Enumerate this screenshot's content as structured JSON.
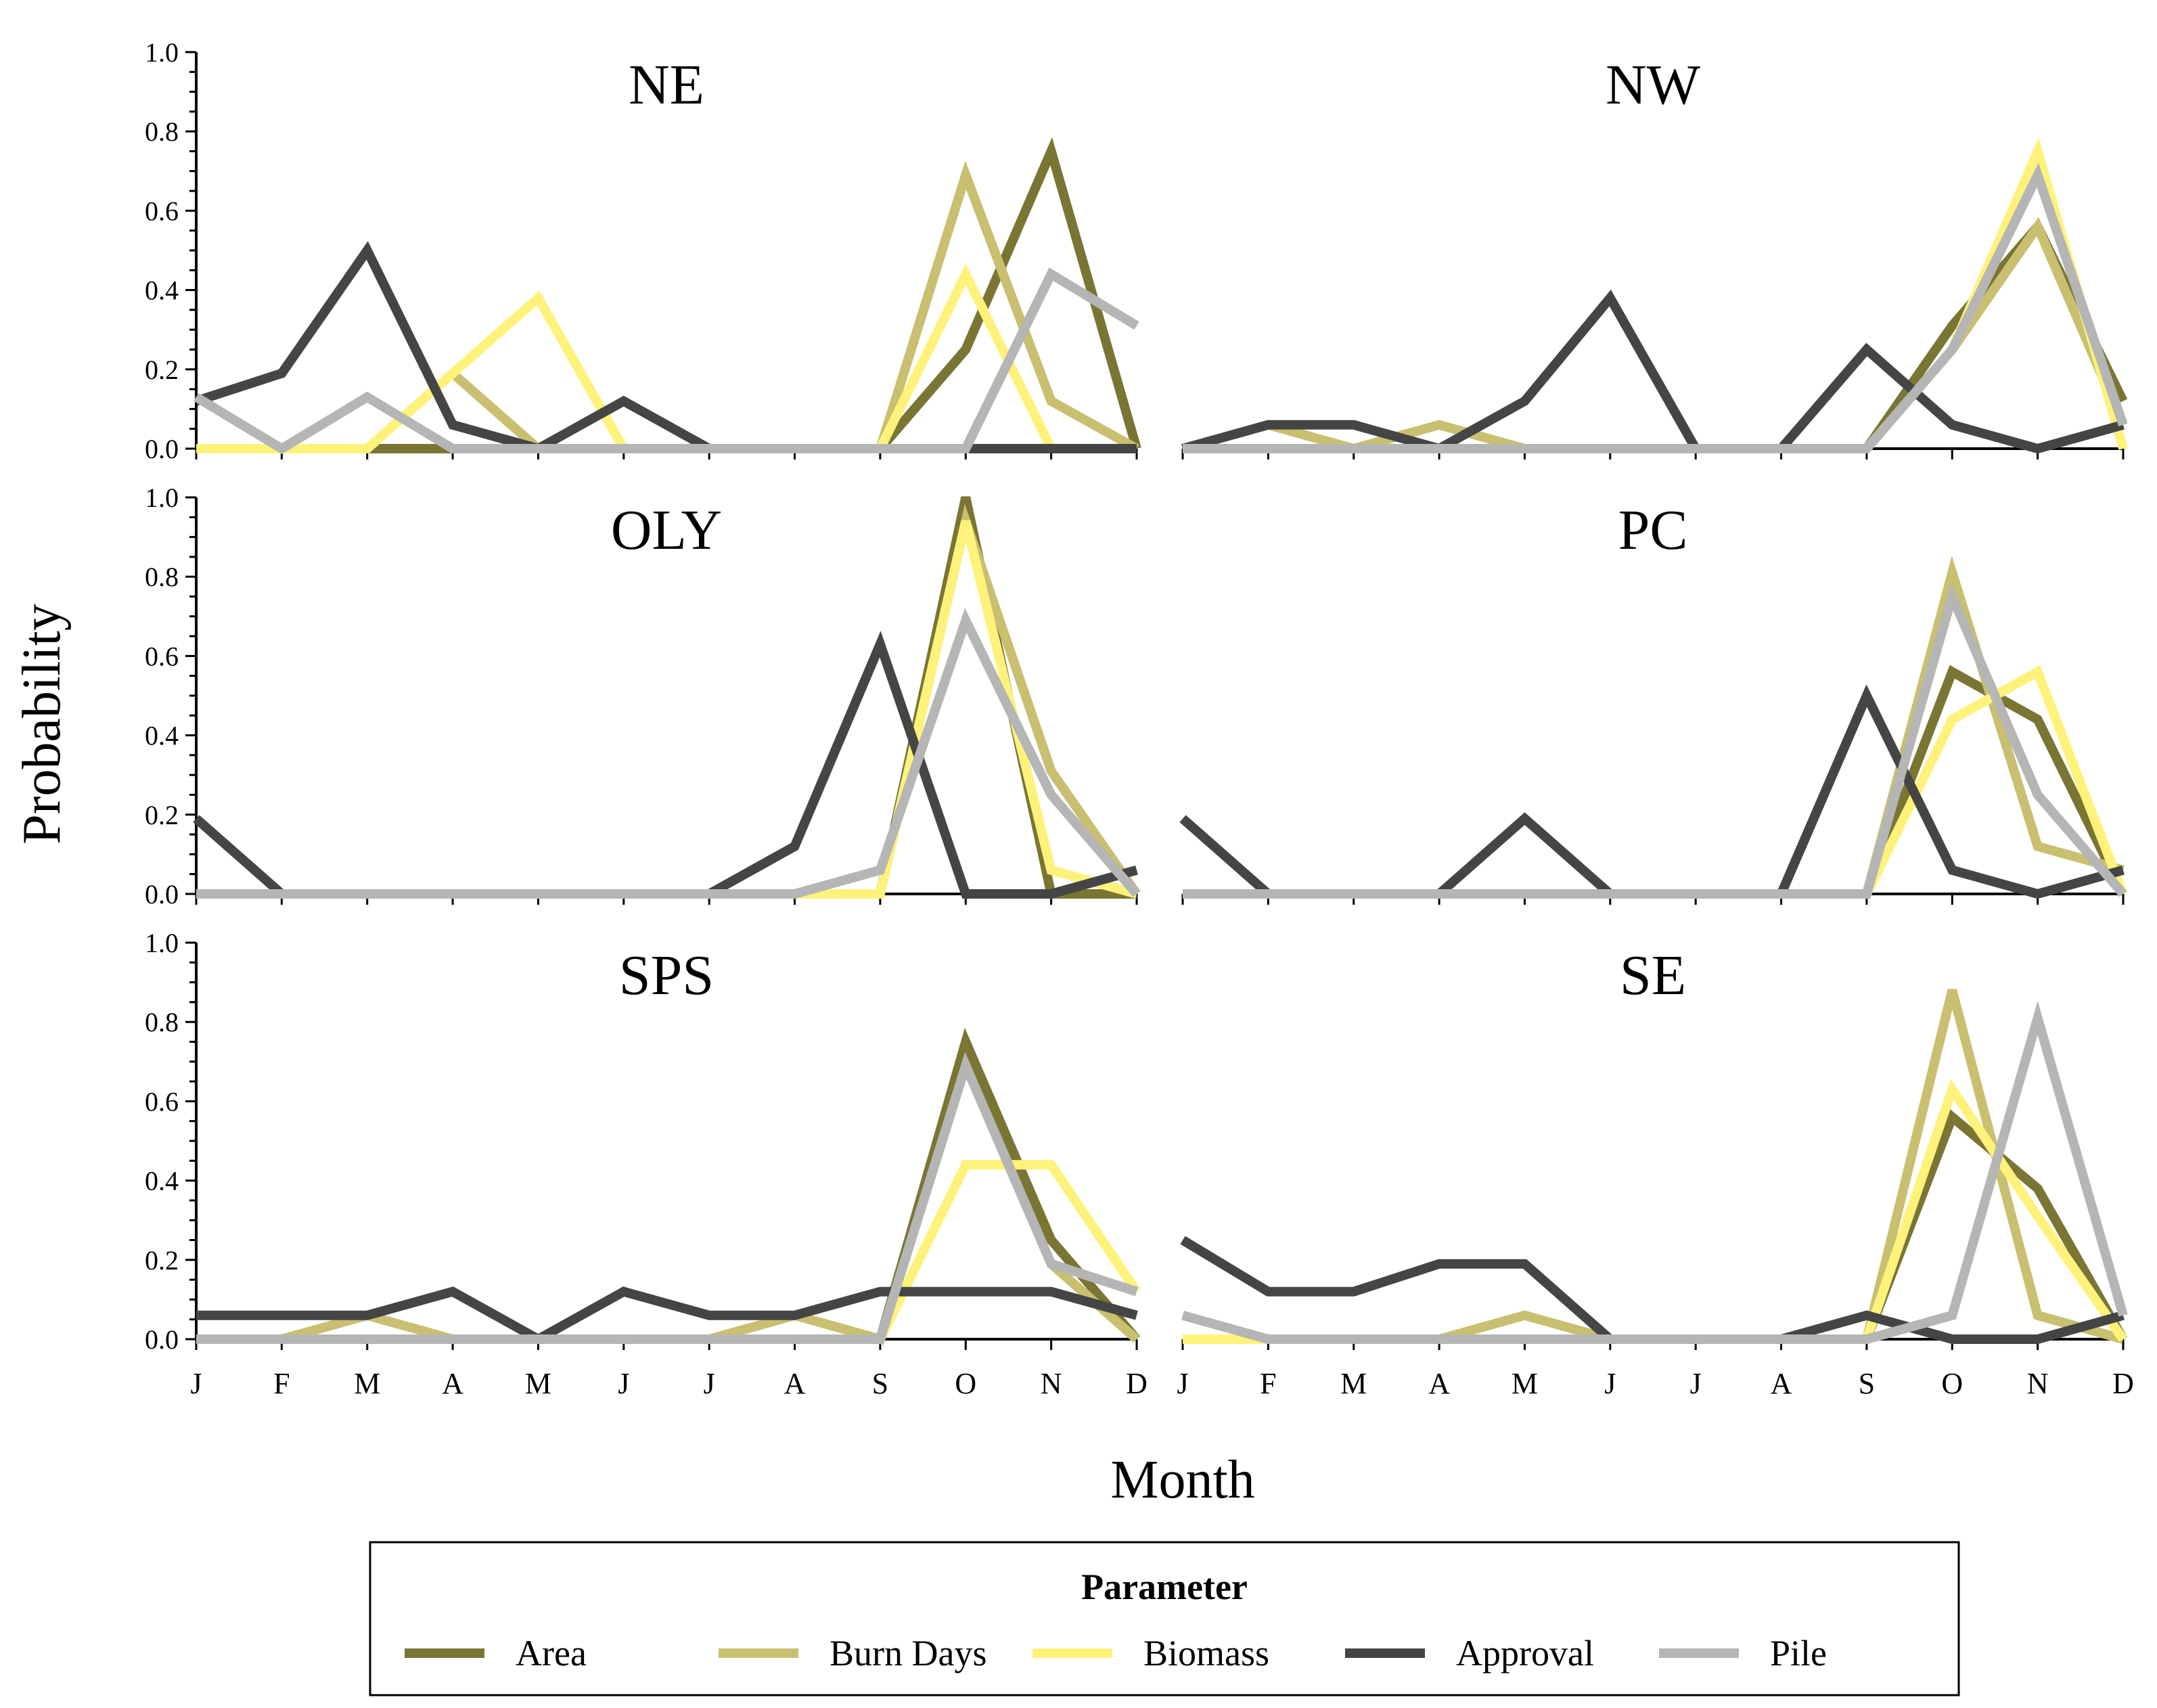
{
  "figure": {
    "ylabel": "Probability",
    "xlabel": "Month",
    "legend_title": "Parameter"
  },
  "chart_data": {
    "type": "line",
    "layout": "facet-grid 3 rows x 2 columns",
    "months": [
      "J",
      "F",
      "M",
      "A",
      "M",
      "J",
      "J",
      "A",
      "S",
      "O",
      "N",
      "D"
    ],
    "yticks": [
      "0.0",
      "0.2",
      "0.4",
      "0.6",
      "0.8",
      "1.0"
    ],
    "ylim": [
      0,
      1
    ],
    "grid": false,
    "legend_position": "bottom",
    "series_styles": [
      {
        "name": "Area",
        "color": "#7a7533"
      },
      {
        "name": "Burn Days",
        "color": "#c9bf70"
      },
      {
        "name": "Biomass",
        "color": "#fff27a"
      },
      {
        "name": "Approval",
        "color": "#454545"
      },
      {
        "name": "Pile",
        "color": "#b5b5b5"
      }
    ],
    "panels": [
      {
        "title": "NE",
        "series": [
          {
            "name": "Area",
            "values": [
              0,
              0,
              0,
              0,
              0,
              0,
              0,
              0,
              0,
              0.25,
              0.75,
              0
            ]
          },
          {
            "name": "Burn Days",
            "values": [
              0,
              0,
              0,
              0.19,
              0,
              0,
              0,
              0,
              0,
              0.69,
              0.12,
              0
            ]
          },
          {
            "name": "Biomass",
            "values": [
              0,
              0,
              0,
              0.19,
              0.38,
              0,
              0,
              0,
              0,
              0.44,
              0,
              0
            ]
          },
          {
            "name": "Approval",
            "values": [
              0.12,
              0.19,
              0.5,
              0.06,
              0,
              0.12,
              0,
              0,
              0,
              0,
              0,
              0
            ]
          },
          {
            "name": "Pile",
            "values": [
              0.13,
              0,
              0.13,
              0,
              0,
              0,
              0,
              0,
              0,
              0,
              0.44,
              0.31
            ]
          }
        ]
      },
      {
        "title": "NW",
        "series": [
          {
            "name": "Area",
            "values": [
              0,
              0,
              0,
              0,
              0,
              0,
              0,
              0,
              0,
              0.31,
              0.56,
              0.12
            ]
          },
          {
            "name": "Burn Days",
            "values": [
              0,
              0.06,
              0,
              0.06,
              0,
              0,
              0,
              0,
              0,
              0.25,
              0.56,
              0.06
            ]
          },
          {
            "name": "Biomass",
            "values": [
              0,
              0,
              0,
              0,
              0,
              0,
              0,
              0,
              0,
              0.25,
              0.75,
              0
            ]
          },
          {
            "name": "Approval",
            "values": [
              0,
              0.06,
              0.06,
              0,
              0.12,
              0.38,
              0,
              0,
              0.25,
              0.06,
              0,
              0.06
            ]
          },
          {
            "name": "Pile",
            "values": [
              0,
              0,
              0,
              0,
              0,
              0,
              0,
              0,
              0,
              0.25,
              0.69,
              0.06
            ]
          }
        ]
      },
      {
        "title": "OLY",
        "series": [
          {
            "name": "Area",
            "values": [
              0,
              0,
              0,
              0,
              0,
              0,
              0,
              0,
              0,
              1.0,
              0,
              0
            ]
          },
          {
            "name": "Burn Days",
            "values": [
              0,
              0,
              0,
              0,
              0,
              0,
              0,
              0,
              0,
              0.94,
              0.31,
              0
            ]
          },
          {
            "name": "Biomass",
            "values": [
              0,
              0,
              0,
              0,
              0,
              0,
              0,
              0,
              0,
              0.94,
              0.06,
              0
            ]
          },
          {
            "name": "Approval",
            "values": [
              0.19,
              0,
              0,
              0,
              0,
              0,
              0,
              0.12,
              0.63,
              0,
              0,
              0.06
            ]
          },
          {
            "name": "Pile",
            "values": [
              0,
              0,
              0,
              0,
              0,
              0,
              0,
              0,
              0.06,
              0.69,
              0.25,
              0
            ]
          }
        ]
      },
      {
        "title": "PC",
        "series": [
          {
            "name": "Area",
            "values": [
              0,
              0,
              0,
              0,
              0,
              0,
              0,
              0,
              0,
              0.56,
              0.44,
              0
            ]
          },
          {
            "name": "Burn Days",
            "values": [
              0,
              0,
              0,
              0,
              0,
              0,
              0,
              0,
              0,
              0.81,
              0.12,
              0.06
            ]
          },
          {
            "name": "Biomass",
            "values": [
              0,
              0,
              0,
              0,
              0,
              0,
              0,
              0,
              0,
              0.44,
              0.56,
              0
            ]
          },
          {
            "name": "Approval",
            "values": [
              0.19,
              0,
              0,
              0,
              0.19,
              0,
              0,
              0,
              0.5,
              0.06,
              0,
              0.06
            ]
          },
          {
            "name": "Pile",
            "values": [
              0,
              0,
              0,
              0,
              0,
              0,
              0,
              0,
              0,
              0.75,
              0.25,
              0
            ]
          }
        ]
      },
      {
        "title": "SPS",
        "series": [
          {
            "name": "Area",
            "values": [
              0,
              0,
              0,
              0,
              0,
              0,
              0,
              0,
              0,
              0.75,
              0.25,
              0
            ]
          },
          {
            "name": "Burn Days",
            "values": [
              0,
              0,
              0.06,
              0,
              0,
              0,
              0,
              0.06,
              0,
              0.69,
              0.19,
              0
            ]
          },
          {
            "name": "Biomass",
            "values": [
              0,
              0,
              0,
              0,
              0,
              0,
              0,
              0,
              0,
              0.44,
              0.44,
              0.12
            ]
          },
          {
            "name": "Approval",
            "values": [
              0.06,
              0.06,
              0.06,
              0.12,
              0,
              0.12,
              0.06,
              0.06,
              0.12,
              0.12,
              0.12,
              0.06
            ]
          },
          {
            "name": "Pile",
            "values": [
              0,
              0,
              0,
              0,
              0,
              0,
              0,
              0,
              0,
              0.69,
              0.19,
              0.12
            ]
          }
        ]
      },
      {
        "title": "SE",
        "series": [
          {
            "name": "Area",
            "values": [
              0,
              0,
              0,
              0,
              0,
              0,
              0,
              0,
              0,
              0.56,
              0.38,
              0
            ]
          },
          {
            "name": "Burn Days",
            "values": [
              0,
              0,
              0,
              0,
              0.06,
              0,
              0,
              0,
              0,
              0.88,
              0.06,
              0
            ]
          },
          {
            "name": "Biomass",
            "values": [
              0,
              0,
              0,
              0,
              0,
              0,
              0,
              0,
              0,
              0.63,
              0.31,
              0
            ]
          },
          {
            "name": "Approval",
            "values": [
              0.25,
              0.12,
              0.12,
              0.19,
              0.19,
              0,
              0,
              0,
              0.06,
              0,
              0,
              0.06
            ]
          },
          {
            "name": "Pile",
            "values": [
              0.06,
              0,
              0,
              0,
              0,
              0,
              0,
              0,
              0,
              0.06,
              0.81,
              0.06
            ]
          }
        ]
      }
    ]
  }
}
